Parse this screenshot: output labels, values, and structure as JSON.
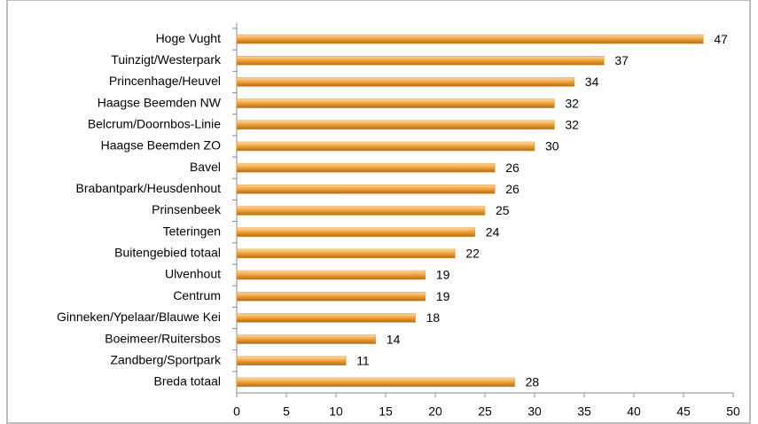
{
  "chart_data": {
    "type": "barh",
    "categories": [
      "Hoge Vught",
      "Tuinzigt/Westerpark",
      "Princenhage/Heuvel",
      "Haagse Beemden NW",
      "Belcrum/Doornbos-Linie",
      "Haagse Beemden ZO",
      "Bavel",
      "Brabantpark/Heusdenhout",
      "Prinsenbeek",
      "Teteringen",
      "Buitengebied totaal",
      "Ulvenhout",
      "Centrum",
      "Ginneken/Ypelaar/Blauwe Kei",
      "Boeimeer/Ruitersbos",
      "Zandberg/Sportpark",
      "Breda totaal"
    ],
    "values": [
      47,
      37,
      34,
      32,
      32,
      30,
      26,
      26,
      25,
      24,
      22,
      19,
      19,
      18,
      14,
      11,
      28
    ],
    "color": "#e8962e",
    "xlim": [
      0,
      50
    ],
    "xticks": [
      0,
      5,
      10,
      15,
      20,
      25,
      30,
      35,
      40,
      45,
      50
    ]
  }
}
